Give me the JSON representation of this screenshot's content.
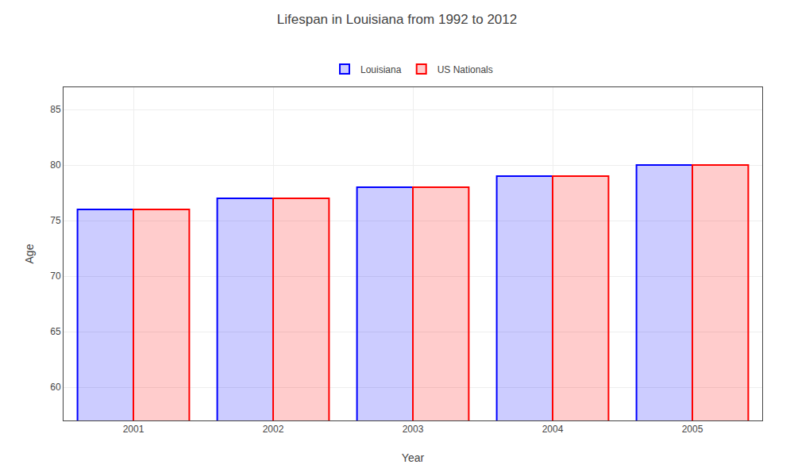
{
  "chart_data": {
    "type": "bar",
    "title": "Lifespan in Louisiana from 1992 to 2012",
    "xlabel": "Year",
    "ylabel": "Age",
    "categories": [
      "2001",
      "2002",
      "2003",
      "2004",
      "2005"
    ],
    "series": [
      {
        "name": "Louisiana",
        "color": "#0000ff",
        "values": [
          76,
          77,
          78,
          79,
          80
        ]
      },
      {
        "name": "US Nationals",
        "color": "#ff0000",
        "values": [
          76,
          77,
          78,
          79,
          80
        ]
      }
    ],
    "ylim": [
      57,
      87
    ],
    "yticks": [
      60,
      65,
      70,
      75,
      80,
      85
    ],
    "grid": true,
    "legend": "top"
  }
}
